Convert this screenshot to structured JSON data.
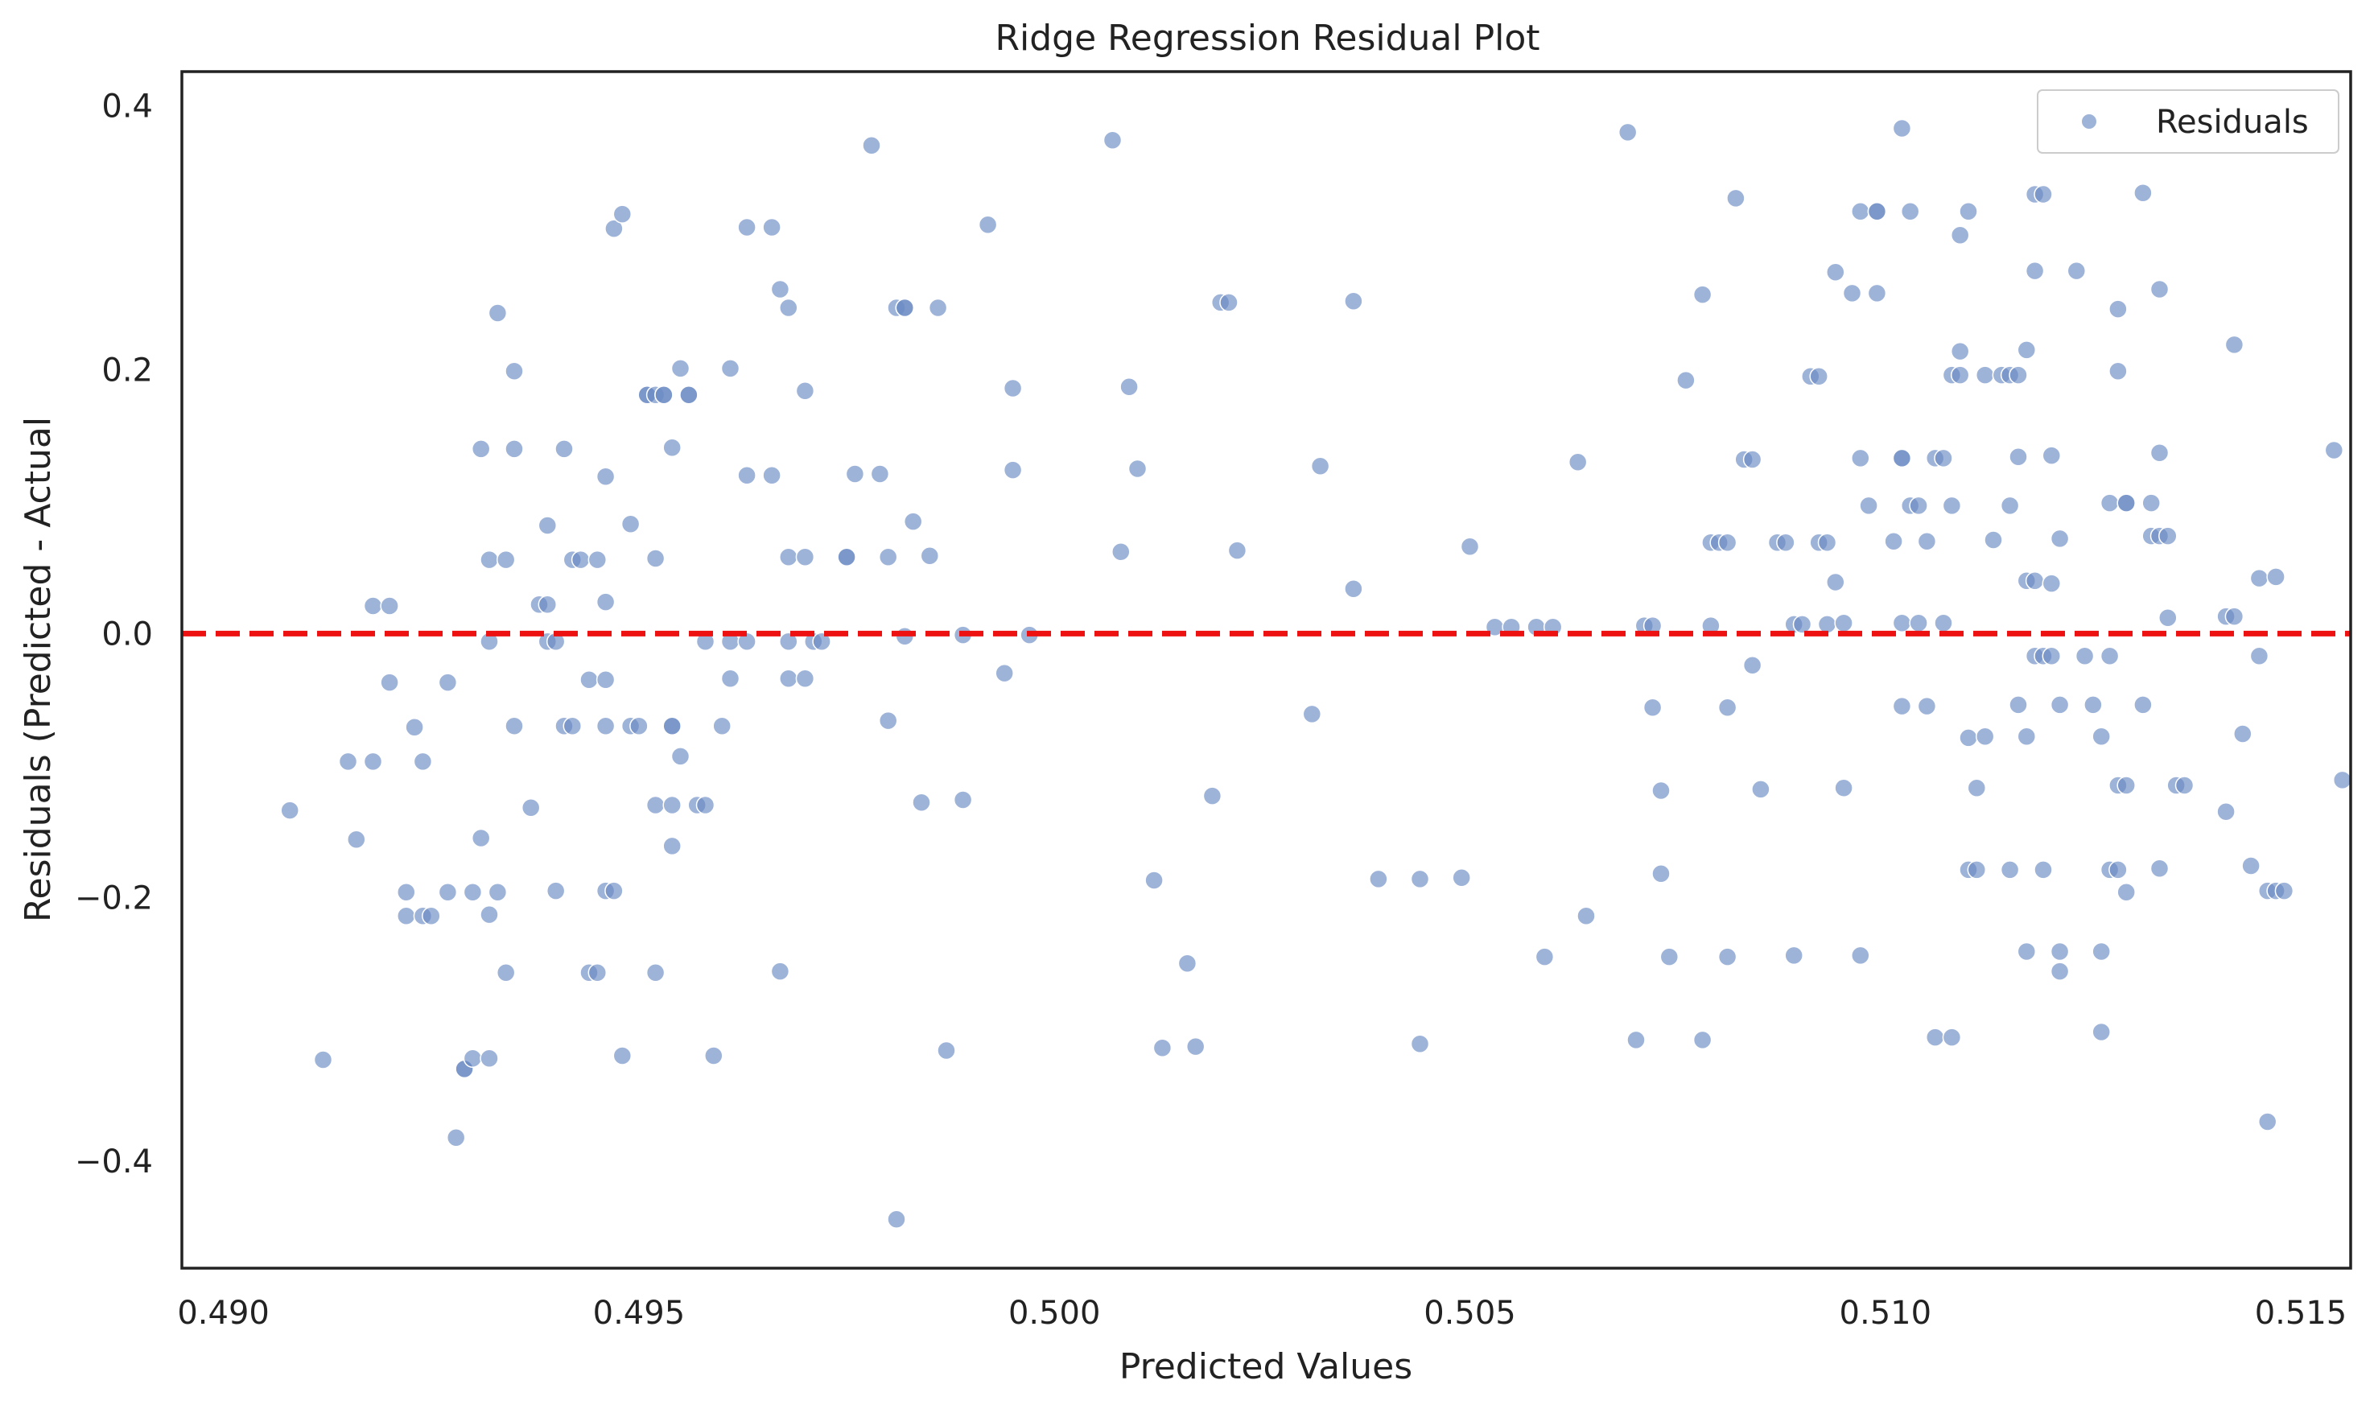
{
  "colors": {
    "points": "#6a8bc3",
    "zero_line": "#ee1111",
    "frame": "#222222",
    "background": "#ffffff"
  },
  "chart_data": {
    "type": "scatter",
    "title": "Ridge Regression Residual Plot",
    "xlabel": "Predicted Values",
    "ylabel": "Residuals (Predicted - Actual",
    "xlim": [
      0.4895,
      0.5156
    ],
    "ylim": [
      -0.481,
      0.426
    ],
    "xticks": [
      0.49,
      0.495,
      0.5,
      0.505,
      0.51,
      0.515
    ],
    "xtick_labels": [
      "0.490",
      "0.495",
      "0.500",
      "0.505",
      "0.510",
      "0.515"
    ],
    "yticks": [
      -0.4,
      -0.2,
      0.0,
      0.2,
      0.4
    ],
    "ytick_labels": [
      "−0.4",
      "−0.2",
      "0.0",
      "0.2",
      "0.4"
    ],
    "grid": false,
    "legend": {
      "position": "top-right",
      "entries": [
        "Residuals"
      ]
    },
    "reference_line": {
      "y": 0.0,
      "style": "dashed"
    },
    "series": [
      {
        "name": "Residuals",
        "points": [
          [
            0.4908,
            -0.134
          ],
          [
            0.4912,
            -0.323
          ],
          [
            0.4915,
            -0.097
          ],
          [
            0.4916,
            -0.156
          ],
          [
            0.4918,
            0.021
          ],
          [
            0.4918,
            -0.097
          ],
          [
            0.492,
            0.021
          ],
          [
            0.492,
            -0.037
          ],
          [
            0.4922,
            -0.196
          ],
          [
            0.4922,
            -0.214
          ],
          [
            0.4923,
            -0.071
          ],
          [
            0.4924,
            -0.097
          ],
          [
            0.4924,
            -0.214
          ],
          [
            0.4925,
            -0.214
          ],
          [
            0.4927,
            -0.196
          ],
          [
            0.4927,
            -0.037
          ],
          [
            0.4928,
            -0.382
          ],
          [
            0.4929,
            -0.33
          ],
          [
            0.4929,
            -0.33
          ],
          [
            0.493,
            -0.322
          ],
          [
            0.493,
            -0.196
          ],
          [
            0.4931,
            0.14
          ],
          [
            0.4931,
            -0.155
          ],
          [
            0.4932,
            -0.322
          ],
          [
            0.4932,
            -0.213
          ],
          [
            0.4932,
            -0.006
          ],
          [
            0.4932,
            0.056
          ],
          [
            0.4933,
            0.243
          ],
          [
            0.4933,
            -0.196
          ],
          [
            0.4934,
            0.056
          ],
          [
            0.4934,
            -0.257
          ],
          [
            0.4935,
            0.199
          ],
          [
            0.4935,
            -0.07
          ],
          [
            0.4935,
            0.14
          ],
          [
            0.4937,
            -0.132
          ],
          [
            0.4938,
            0.022
          ],
          [
            0.4939,
            0.022
          ],
          [
            0.4939,
            -0.006
          ],
          [
            0.4939,
            0.082
          ],
          [
            0.494,
            -0.006
          ],
          [
            0.494,
            -0.195
          ],
          [
            0.4941,
            0.14
          ],
          [
            0.4941,
            -0.07
          ],
          [
            0.4942,
            -0.07
          ],
          [
            0.4942,
            0.056
          ],
          [
            0.4943,
            0.056
          ],
          [
            0.4944,
            -0.035
          ],
          [
            0.4944,
            -0.257
          ],
          [
            0.4945,
            0.056
          ],
          [
            0.4945,
            -0.257
          ],
          [
            0.4946,
            0.119
          ],
          [
            0.4946,
            0.024
          ],
          [
            0.4946,
            -0.07
          ],
          [
            0.4946,
            -0.035
          ],
          [
            0.4946,
            -0.195
          ],
          [
            0.4947,
            0.307
          ],
          [
            0.4947,
            -0.195
          ],
          [
            0.4948,
            -0.32
          ],
          [
            0.4948,
            0.318
          ],
          [
            0.4949,
            -0.07
          ],
          [
            0.4949,
            0.083
          ],
          [
            0.495,
            -0.07
          ],
          [
            0.4951,
            0.181
          ],
          [
            0.4951,
            0.181
          ],
          [
            0.4952,
            0.181
          ],
          [
            0.4952,
            -0.13
          ],
          [
            0.4952,
            0.057
          ],
          [
            0.4952,
            -0.257
          ],
          [
            0.4953,
            0.181
          ],
          [
            0.4953,
            0.181
          ],
          [
            0.4954,
            0.141
          ],
          [
            0.4954,
            -0.07
          ],
          [
            0.4954,
            -0.07
          ],
          [
            0.4954,
            -0.161
          ],
          [
            0.4954,
            -0.13
          ],
          [
            0.4955,
            -0.093
          ],
          [
            0.4955,
            0.201
          ],
          [
            0.4956,
            0.181
          ],
          [
            0.4956,
            0.181
          ],
          [
            0.4957,
            -0.13
          ],
          [
            0.4958,
            -0.13
          ],
          [
            0.4958,
            -0.006
          ],
          [
            0.4959,
            -0.32
          ],
          [
            0.496,
            -0.07
          ],
          [
            0.4961,
            0.201
          ],
          [
            0.4961,
            -0.034
          ],
          [
            0.4961,
            -0.006
          ],
          [
            0.4963,
            0.12
          ],
          [
            0.4963,
            -0.006
          ],
          [
            0.4963,
            0.308
          ],
          [
            0.4966,
            0.308
          ],
          [
            0.4966,
            0.12
          ],
          [
            0.4967,
            0.261
          ],
          [
            0.4967,
            -0.256
          ],
          [
            0.4968,
            0.247
          ],
          [
            0.4968,
            0.058
          ],
          [
            0.4968,
            -0.034
          ],
          [
            0.4968,
            -0.006
          ],
          [
            0.497,
            0.058
          ],
          [
            0.497,
            0.184
          ],
          [
            0.497,
            -0.034
          ],
          [
            0.4971,
            -0.006
          ],
          [
            0.4972,
            -0.006
          ],
          [
            0.4975,
            0.058
          ],
          [
            0.4975,
            0.058
          ],
          [
            0.4976,
            0.121
          ],
          [
            0.4978,
            0.37
          ],
          [
            0.4979,
            0.121
          ],
          [
            0.498,
            0.058
          ],
          [
            0.498,
            -0.066
          ],
          [
            0.4981,
            0.247
          ],
          [
            0.4981,
            -0.444
          ],
          [
            0.4982,
            0.247
          ],
          [
            0.4982,
            0.247
          ],
          [
            0.4982,
            -0.002
          ],
          [
            0.4983,
            0.085
          ],
          [
            0.4984,
            -0.128
          ],
          [
            0.4985,
            0.059
          ],
          [
            0.4986,
            0.247
          ],
          [
            0.4987,
            -0.316
          ],
          [
            0.4989,
            -0.126
          ],
          [
            0.4989,
            -0.001
          ],
          [
            0.4992,
            0.31
          ],
          [
            0.4994,
            -0.03
          ],
          [
            0.4995,
            0.124
          ],
          [
            0.4995,
            0.186
          ],
          [
            0.4997,
            -0.001
          ],
          [
            0.5007,
            0.374
          ],
          [
            0.5008,
            0.062
          ],
          [
            0.5009,
            0.187
          ],
          [
            0.501,
            0.125
          ],
          [
            0.5012,
            -0.187
          ],
          [
            0.5013,
            -0.314
          ],
          [
            0.5016,
            -0.25
          ],
          [
            0.5017,
            -0.313
          ],
          [
            0.5019,
            -0.123
          ],
          [
            0.502,
            0.251
          ],
          [
            0.5021,
            0.251
          ],
          [
            0.5022,
            0.063
          ],
          [
            0.5031,
            -0.061
          ],
          [
            0.5032,
            0.127
          ],
          [
            0.5036,
            0.034
          ],
          [
            0.5036,
            0.252
          ],
          [
            0.5039,
            -0.186
          ],
          [
            0.5044,
            -0.186
          ],
          [
            0.5044,
            -0.311
          ],
          [
            0.5049,
            -0.185
          ],
          [
            0.505,
            0.066
          ],
          [
            0.5053,
            0.005
          ],
          [
            0.5055,
            0.005
          ],
          [
            0.5058,
            0.005
          ],
          [
            0.5059,
            -0.245
          ],
          [
            0.506,
            0.005
          ],
          [
            0.5063,
            0.13
          ],
          [
            0.5064,
            -0.214
          ],
          [
            0.5069,
            0.38
          ],
          [
            0.507,
            -0.308
          ],
          [
            0.5071,
            0.006
          ],
          [
            0.5072,
            0.006
          ],
          [
            0.5072,
            -0.056
          ],
          [
            0.5073,
            -0.119
          ],
          [
            0.5073,
            -0.182
          ],
          [
            0.5074,
            -0.245
          ],
          [
            0.5076,
            0.192
          ],
          [
            0.5078,
            -0.308
          ],
          [
            0.5078,
            0.257
          ],
          [
            0.5079,
            0.069
          ],
          [
            0.5079,
            0.006
          ],
          [
            0.508,
            0.069
          ],
          [
            0.5081,
            0.069
          ],
          [
            0.5081,
            -0.056
          ],
          [
            0.5081,
            -0.245
          ],
          [
            0.5082,
            0.33
          ],
          [
            0.5083,
            0.132
          ],
          [
            0.5084,
            0.132
          ],
          [
            0.5085,
            -0.118
          ],
          [
            0.5084,
            -0.024
          ],
          [
            0.5087,
            0.069
          ],
          [
            0.5088,
            0.069
          ],
          [
            0.5089,
            -0.244
          ],
          [
            0.5089,
            0.007
          ],
          [
            0.509,
            0.007
          ],
          [
            0.5091,
            0.195
          ],
          [
            0.5092,
            0.069
          ],
          [
            0.5092,
            0.195
          ],
          [
            0.5093,
            0.069
          ],
          [
            0.5093,
            0.007
          ],
          [
            0.5094,
            0.274
          ],
          [
            0.5094,
            0.039
          ],
          [
            0.5095,
            0.008
          ],
          [
            0.5095,
            -0.117
          ],
          [
            0.5096,
            0.258
          ],
          [
            0.5097,
            0.133
          ],
          [
            0.5097,
            -0.244
          ],
          [
            0.5097,
            0.32
          ],
          [
            0.5098,
            0.097
          ],
          [
            0.5099,
            0.258
          ],
          [
            0.5099,
            0.32
          ],
          [
            0.5099,
            0.32
          ],
          [
            0.5101,
            0.07
          ],
          [
            0.5102,
            0.008
          ],
          [
            0.5102,
            -0.055
          ],
          [
            0.5102,
            0.133
          ],
          [
            0.5102,
            0.133
          ],
          [
            0.5102,
            0.383
          ],
          [
            0.5103,
            0.32
          ],
          [
            0.5103,
            0.097
          ],
          [
            0.5104,
            0.097
          ],
          [
            0.5104,
            0.008
          ],
          [
            0.5105,
            0.07
          ],
          [
            0.5105,
            -0.055
          ],
          [
            0.5106,
            0.133
          ],
          [
            0.5106,
            -0.306
          ],
          [
            0.5107,
            0.133
          ],
          [
            0.5107,
            0.008
          ],
          [
            0.5108,
            0.196
          ],
          [
            0.5108,
            0.097
          ],
          [
            0.5108,
            -0.306
          ],
          [
            0.5109,
            0.196
          ],
          [
            0.5109,
            0.302
          ],
          [
            0.5109,
            0.214
          ],
          [
            0.511,
            -0.179
          ],
          [
            0.511,
            -0.079
          ],
          [
            0.511,
            0.32
          ],
          [
            0.5111,
            -0.117
          ],
          [
            0.5111,
            -0.179
          ],
          [
            0.5112,
            -0.078
          ],
          [
            0.5112,
            0.196
          ],
          [
            0.5113,
            0.071
          ],
          [
            0.5114,
            0.196
          ],
          [
            0.5115,
            0.196
          ],
          [
            0.5115,
            -0.179
          ],
          [
            0.5115,
            0.097
          ],
          [
            0.5116,
            0.196
          ],
          [
            0.5116,
            -0.054
          ],
          [
            0.5116,
            0.134
          ],
          [
            0.5117,
            -0.241
          ],
          [
            0.5117,
            0.215
          ],
          [
            0.5117,
            -0.078
          ],
          [
            0.5117,
            0.04
          ],
          [
            0.5118,
            0.04
          ],
          [
            0.5118,
            0.333
          ],
          [
            0.5118,
            -0.017
          ],
          [
            0.5118,
            0.275
          ],
          [
            0.5119,
            0.333
          ],
          [
            0.5119,
            -0.017
          ],
          [
            0.5119,
            -0.179
          ],
          [
            0.512,
            0.135
          ],
          [
            0.512,
            0.038
          ],
          [
            0.512,
            -0.017
          ],
          [
            0.5121,
            0.072
          ],
          [
            0.5121,
            -0.054
          ],
          [
            0.5121,
            -0.241
          ],
          [
            0.5121,
            -0.256
          ],
          [
            0.5123,
            0.275
          ],
          [
            0.5124,
            -0.017
          ],
          [
            0.5125,
            -0.054
          ],
          [
            0.5126,
            -0.241
          ],
          [
            0.5126,
            -0.302
          ],
          [
            0.5126,
            -0.078
          ],
          [
            0.5127,
            -0.179
          ],
          [
            0.5127,
            -0.017
          ],
          [
            0.5127,
            0.099
          ],
          [
            0.5128,
            0.246
          ],
          [
            0.5128,
            0.199
          ],
          [
            0.5128,
            -0.179
          ],
          [
            0.5128,
            -0.115
          ],
          [
            0.5129,
            0.099
          ],
          [
            0.5129,
            -0.115
          ],
          [
            0.5129,
            -0.196
          ],
          [
            0.5129,
            0.099
          ],
          [
            0.5131,
            0.334
          ],
          [
            0.5131,
            -0.054
          ],
          [
            0.5132,
            0.099
          ],
          [
            0.5132,
            0.074
          ],
          [
            0.5133,
            0.074
          ],
          [
            0.5133,
            0.261
          ],
          [
            0.5133,
            0.137
          ],
          [
            0.5133,
            -0.178
          ],
          [
            0.5134,
            0.074
          ],
          [
            0.5134,
            0.012
          ],
          [
            0.5135,
            -0.115
          ],
          [
            0.5136,
            -0.115
          ],
          [
            0.5141,
            0.013
          ],
          [
            0.5141,
            -0.135
          ],
          [
            0.5142,
            0.013
          ],
          [
            0.5142,
            0.219
          ],
          [
            0.5143,
            -0.076
          ],
          [
            0.5144,
            -0.176
          ],
          [
            0.5145,
            0.042
          ],
          [
            0.5145,
            -0.017
          ],
          [
            0.5146,
            -0.195
          ],
          [
            0.5146,
            -0.37
          ],
          [
            0.5147,
            0.043
          ],
          [
            0.5147,
            -0.195
          ],
          [
            0.5148,
            -0.195
          ],
          [
            0.5154,
            0.139
          ],
          [
            0.5155,
            -0.111
          ]
        ]
      }
    ]
  }
}
